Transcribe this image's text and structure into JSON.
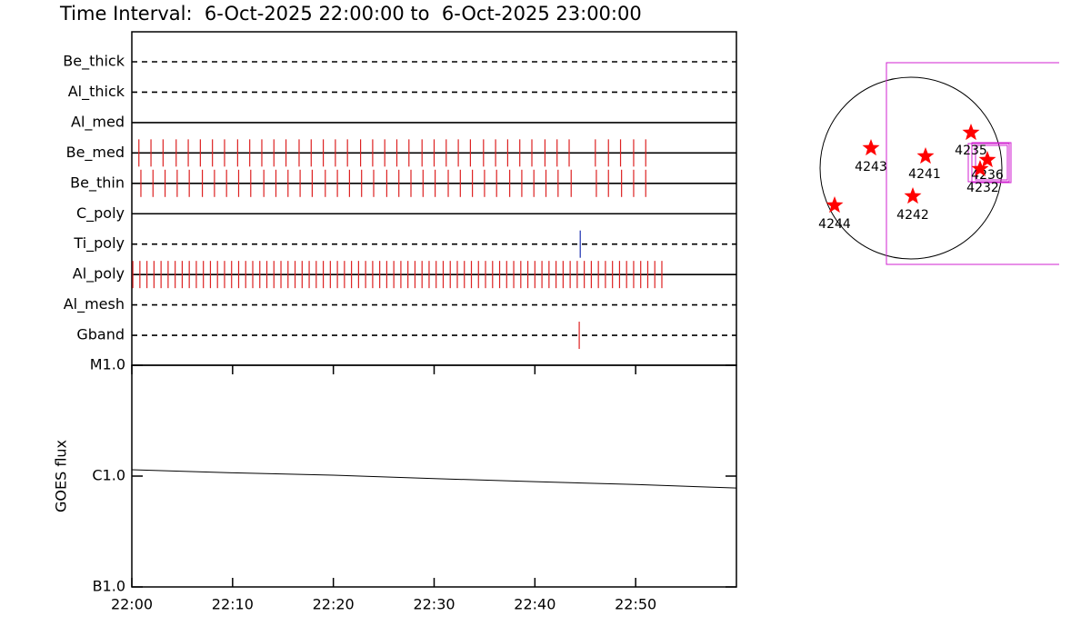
{
  "title": "Time Interval:  6-Oct-2025 22:00:00 to  6-Oct-2025 23:00:00",
  "chart_data": [
    {
      "type": "timeline",
      "xlim": [
        0,
        60
      ],
      "rows": [
        {
          "name": "Be_thick",
          "line": "dashed",
          "color": "#dd2222",
          "x": []
        },
        {
          "name": "Al_thick",
          "line": "dashed",
          "color": "#dd2222",
          "x": []
        },
        {
          "name": "Al_med",
          "line": "solid",
          "color": "#dd2222",
          "x": []
        },
        {
          "name": "Be_med",
          "line": "solid",
          "color": "#dd2222",
          "x": [
            0.7,
            1.9,
            3.1,
            4.4,
            5.6,
            6.8,
            8.0,
            9.2,
            10.5,
            11.7,
            12.9,
            14.1,
            15.3,
            16.6,
            17.8,
            19.0,
            20.2,
            21.4,
            22.7,
            23.9,
            25.1,
            26.3,
            27.5,
            28.8,
            30.0,
            31.2,
            32.4,
            33.6,
            34.9,
            36.1,
            37.3,
            38.5,
            39.7,
            41.0,
            42.2,
            43.4,
            46.0,
            47.3,
            48.5,
            49.8,
            51.0
          ]
        },
        {
          "name": "Be_thin",
          "line": "solid",
          "color": "#dd2222",
          "x": [
            0.9,
            2.1,
            3.3,
            4.5,
            5.7,
            7.0,
            8.2,
            9.4,
            10.6,
            11.8,
            13.1,
            14.3,
            15.5,
            16.7,
            17.9,
            19.2,
            20.4,
            21.6,
            22.8,
            24.0,
            25.3,
            26.5,
            27.7,
            28.9,
            30.1,
            31.4,
            32.6,
            33.8,
            35.0,
            36.2,
            37.5,
            38.7,
            39.9,
            41.1,
            42.3,
            43.6,
            46.1,
            47.3,
            48.6,
            49.8,
            51.0
          ]
        },
        {
          "name": "C_poly",
          "line": "solid",
          "color": "#dd2222",
          "x": []
        },
        {
          "name": "Ti_poly",
          "line": "dashed",
          "color": "#1a2fb0",
          "x": [
            44.5
          ]
        },
        {
          "name": "Al_poly",
          "line": "solid",
          "color": "#dd2222",
          "x": [
            0.1,
            0.8,
            1.5,
            2.2,
            2.9,
            3.6,
            4.3,
            5.0,
            5.7,
            6.4,
            7.1,
            7.8,
            8.5,
            9.2,
            9.9,
            10.6,
            11.3,
            12.0,
            12.7,
            13.4,
            14.1,
            14.8,
            15.5,
            16.2,
            16.9,
            17.6,
            18.3,
            19.0,
            19.7,
            20.4,
            21.1,
            21.8,
            22.5,
            23.2,
            23.9,
            24.6,
            25.3,
            26.0,
            26.7,
            27.4,
            28.1,
            28.8,
            29.5,
            30.2,
            30.9,
            31.6,
            32.3,
            33.0,
            33.7,
            34.4,
            35.1,
            35.8,
            36.5,
            37.2,
            37.9,
            38.6,
            39.3,
            40.0,
            40.7,
            41.4,
            42.1,
            42.8,
            43.5,
            44.2,
            44.9,
            45.6,
            46.3,
            47.0,
            47.7,
            48.4,
            49.1,
            49.8,
            50.5,
            51.2,
            51.9,
            52.6
          ]
        },
        {
          "name": "Al_mesh",
          "line": "dashed",
          "color": "#dd2222",
          "x": []
        },
        {
          "name": "Gband",
          "line": "dashed",
          "color": "#dd2222",
          "x": [
            44.4
          ]
        }
      ]
    },
    {
      "type": "line",
      "ylabel": "GOES flux",
      "log": true,
      "color": "#000000",
      "xlim": [
        0,
        60
      ],
      "xticks": [
        {
          "value": 0,
          "label": "22:00"
        },
        {
          "value": 10,
          "label": "22:10"
        },
        {
          "value": 20,
          "label": "22:20"
        },
        {
          "value": 30,
          "label": "22:30"
        },
        {
          "value": 40,
          "label": "22:40"
        },
        {
          "value": 50,
          "label": "22:50"
        }
      ],
      "ylim": [
        1e-07,
        1e-05
      ],
      "yticks": [
        {
          "value": 1e-05,
          "label": "M1.0"
        },
        {
          "value": 1e-06,
          "label": "C1.0"
        },
        {
          "value": 1e-07,
          "label": "B1.0"
        }
      ],
      "x": [
        0,
        10,
        20,
        30,
        40,
        50,
        60
      ],
      "values": [
        1.14e-06,
        1.07e-06,
        1.02e-06,
        9.5e-07,
        8.9e-07,
        8.4e-07,
        7.8e-07
      ]
    }
  ],
  "sun_map": {
    "regions": [
      {
        "label": "4243"
      },
      {
        "label": "4241"
      },
      {
        "label": "4235"
      },
      {
        "label": "4236"
      },
      {
        "label": "4232"
      },
      {
        "label": "4242"
      },
      {
        "label": "4244"
      }
    ]
  }
}
